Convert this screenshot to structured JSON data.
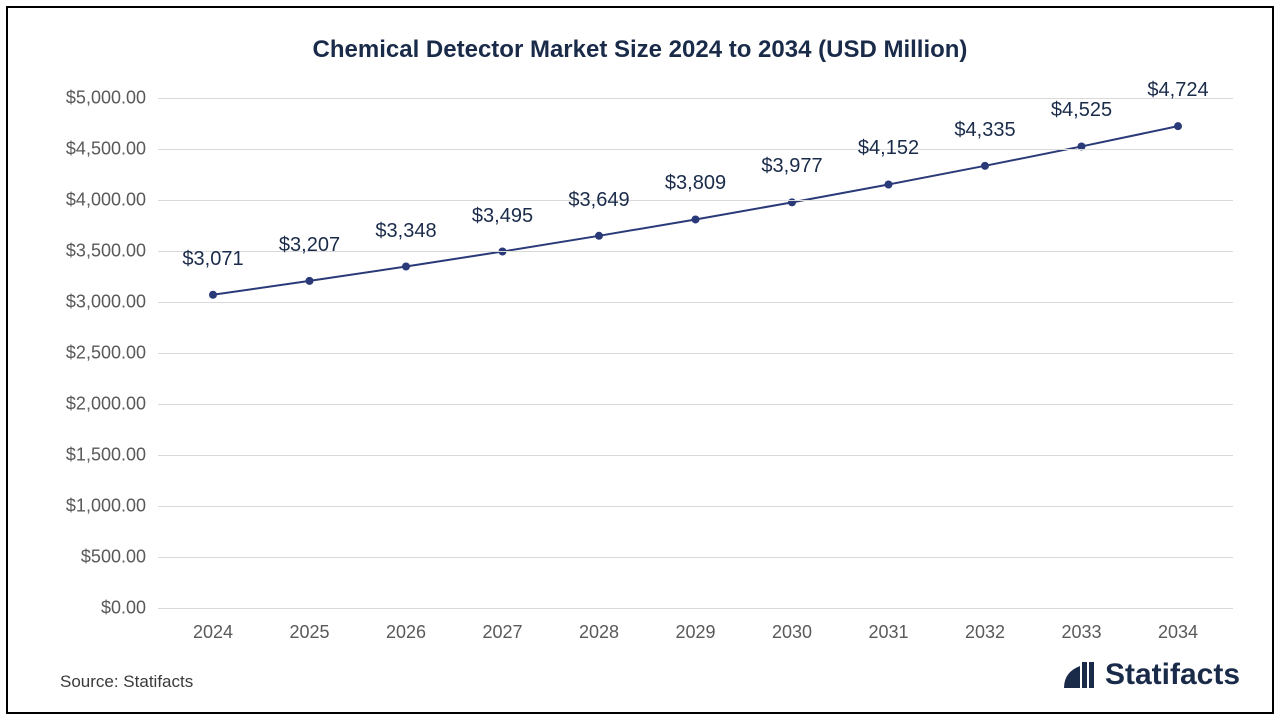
{
  "chart": {
    "type": "line",
    "title": "Chemical Detector Market Size 2024 to 2034 (USD Million)",
    "title_fontsize": 24,
    "title_color": "#1a2b4a",
    "background_color": "#ffffff",
    "border_color": "#000000",
    "grid_color": "#d9d9d9",
    "axis_label_color": "#595959",
    "axis_fontsize": 18,
    "data_label_color": "#1a2b4a",
    "data_label_fontsize": 20,
    "line_color": "#2a3a78",
    "line_width": 2,
    "marker_color": "#2a3a78",
    "marker_radius": 4,
    "ylim": [
      0,
      5000
    ],
    "ytick_step": 500,
    "yticks": [
      {
        "value": 0,
        "label": "$0.00"
      },
      {
        "value": 500,
        "label": "$500.00"
      },
      {
        "value": 1000,
        "label": "$1,000.00"
      },
      {
        "value": 1500,
        "label": "$1,500.00"
      },
      {
        "value": 2000,
        "label": "$2,000.00"
      },
      {
        "value": 2500,
        "label": "$2,500.00"
      },
      {
        "value": 3000,
        "label": "$3,000.00"
      },
      {
        "value": 3500,
        "label": "$3,500.00"
      },
      {
        "value": 4000,
        "label": "$4,000.00"
      },
      {
        "value": 4500,
        "label": "$4,500.00"
      },
      {
        "value": 5000,
        "label": "$5,000.00"
      }
    ],
    "categories": [
      "2024",
      "2025",
      "2026",
      "2027",
      "2028",
      "2029",
      "2030",
      "2031",
      "2032",
      "2033",
      "2034"
    ],
    "values": [
      3071,
      3207,
      3348,
      3495,
      3649,
      3809,
      3977,
      4152,
      4335,
      4525,
      4724
    ],
    "data_labels": [
      "$3,071",
      "$3,207",
      "$3,348",
      "$3,495",
      "$3,649",
      "$3,809",
      "$3,977",
      "$4,152",
      "$4,335",
      "$4,525",
      "$4,724"
    ],
    "data_label_offset": 24
  },
  "footer": {
    "source": "Source: Statifacts",
    "source_fontsize": 17,
    "brand_text": "Statifacts",
    "brand_fontsize": 30,
    "brand_color": "#1a2b4a"
  }
}
